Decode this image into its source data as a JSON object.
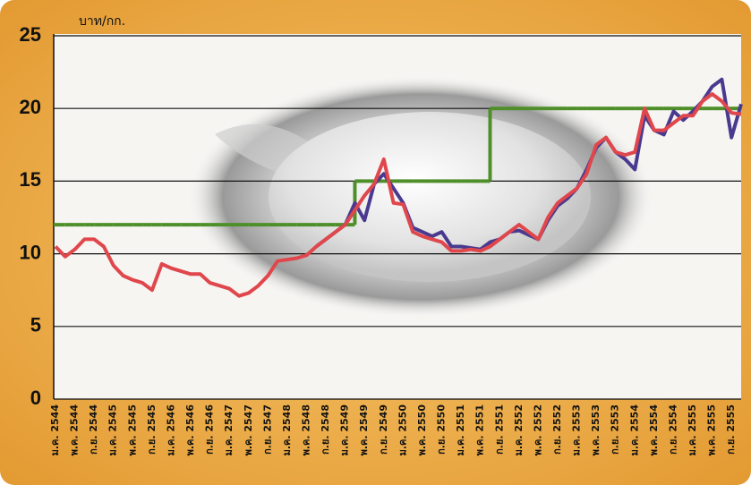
{
  "chart_data": {
    "type": "line",
    "y_label": "บาท/กก.",
    "categories": [
      "ม.ค. 2544",
      null,
      "พ.ค. 2544",
      null,
      "ก.ย. 2544",
      null,
      "ม.ค. 2545",
      null,
      "พ.ค. 2545",
      null,
      "ก.ย. 2545",
      null,
      "ม.ค. 2546",
      null,
      "พ.ค. 2546",
      null,
      "ก.ย. 2546",
      null,
      "ม.ค. 2547",
      null,
      "พ.ค. 2547",
      null,
      "ก.ย. 2547",
      null,
      "ม.ค. 2548",
      null,
      "พ.ค. 2548",
      null,
      "ก.ย. 2548",
      null,
      "ม.ค. 2549",
      null,
      "พ.ค. 2549",
      null,
      "ก.ย. 2549",
      null,
      "ม.ค. 2550",
      null,
      "พ.ค. 2550",
      null,
      "ก.ย. 2550",
      null,
      "ม.ค. 2551",
      null,
      "พ.ค. 2551",
      null,
      "ก.ย. 2551",
      null,
      "ม.ค. 2552",
      null,
      "พ.ค. 2552",
      null,
      "ก.ย. 2552",
      null,
      "ม.ค. 2553",
      null,
      "พ.ค. 2553",
      null,
      "ก.ย. 2553",
      null,
      "ม.ค. 2554",
      null,
      "พ.ค. 2554",
      null,
      "ก.ย. 2554",
      null,
      "ม.ค. 2555",
      null,
      "พ.ค. 2555",
      null,
      "ก.ย. 2555",
      null
    ],
    "series": [
      {
        "color": "#4f8f2a",
        "step": true,
        "values": [
          12,
          12,
          12,
          12,
          12,
          12,
          12,
          12,
          12,
          12,
          12,
          12,
          12,
          12,
          12,
          12,
          12,
          12,
          12,
          12,
          12,
          12,
          12,
          12,
          12,
          12,
          12,
          12,
          12,
          12,
          12,
          15,
          15,
          15,
          15,
          15,
          15,
          15,
          15,
          15,
          15,
          15,
          15,
          15,
          15,
          20,
          20,
          20,
          20,
          20,
          20,
          20,
          20,
          20,
          20,
          20,
          20,
          20,
          20,
          20,
          20,
          20,
          20,
          20,
          20,
          20,
          20,
          20,
          20,
          20,
          20,
          20
        ]
      },
      {
        "color": "#4a3a8f",
        "step": false,
        "values": [
          null,
          null,
          null,
          null,
          null,
          null,
          null,
          null,
          null,
          null,
          null,
          null,
          null,
          null,
          null,
          null,
          null,
          null,
          null,
          null,
          null,
          null,
          null,
          null,
          null,
          null,
          null,
          10.5,
          11.0,
          11.5,
          12.0,
          13.5,
          12.3,
          14.8,
          15.5,
          14.5,
          13.5,
          11.8,
          11.5,
          11.2,
          11.5,
          10.5,
          10.5,
          10.4,
          10.3,
          10.8,
          11.0,
          11.5,
          11.6,
          11.3,
          11.0,
          12.3,
          13.3,
          13.8,
          14.5,
          15.8,
          17.3,
          18.0,
          17.0,
          16.5,
          15.8,
          19.5,
          18.5,
          18.2,
          19.8,
          19.2,
          19.8,
          20.5,
          21.5,
          22.0,
          18.0,
          20.3
        ]
      },
      {
        "color": "#e0474c",
        "step": false,
        "values": [
          10.5,
          9.8,
          10.3,
          11.0,
          11.0,
          10.5,
          9.2,
          8.5,
          8.2,
          8.0,
          7.5,
          9.3,
          9.0,
          8.8,
          8.6,
          8.6,
          8.0,
          7.8,
          7.6,
          7.1,
          7.3,
          7.8,
          8.5,
          9.5,
          9.6,
          9.7,
          9.9,
          10.5,
          11.0,
          11.5,
          12.0,
          13.0,
          14.0,
          14.8,
          16.5,
          13.5,
          13.4,
          11.5,
          11.2,
          11.0,
          10.8,
          10.2,
          10.2,
          10.3,
          10.2,
          10.5,
          11.0,
          11.5,
          12.0,
          11.5,
          11.0,
          12.5,
          13.5,
          14.0,
          14.5,
          15.5,
          17.5,
          18.0,
          17.0,
          16.8,
          17.0,
          20.0,
          18.5,
          18.5,
          19.0,
          19.5,
          19.5,
          20.5,
          21.0,
          20.5,
          19.7,
          19.6
        ]
      }
    ],
    "ylim": [
      0,
      25
    ],
    "yticks": [
      0,
      5,
      10,
      15,
      20,
      25
    ],
    "grid": true
  }
}
